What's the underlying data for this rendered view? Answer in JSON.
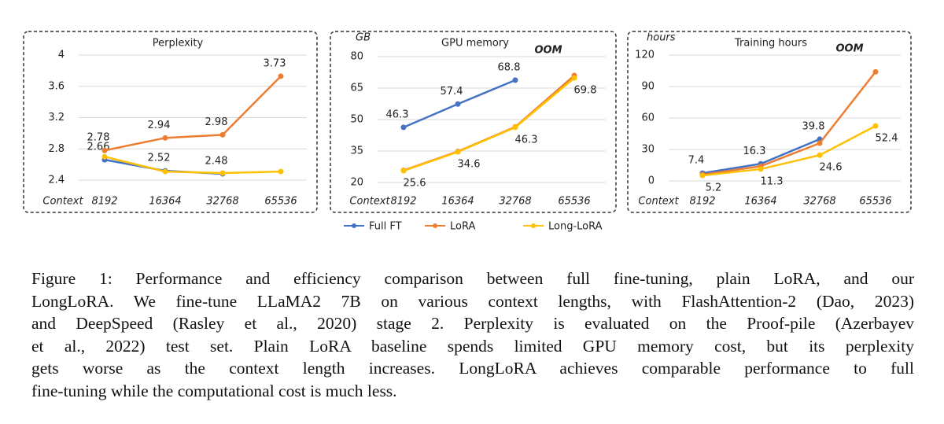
{
  "chart_data": [
    {
      "type": "line",
      "title": "Perplexity",
      "x_label": "Context",
      "categories": [
        "8192",
        "16364",
        "32768",
        "65536"
      ],
      "ylim": [
        2.4,
        4
      ],
      "yticks": [
        2.4,
        2.8,
        3.2,
        3.6,
        4
      ],
      "grid": true,
      "series": [
        {
          "name": "Full FT",
          "color": "#4472c4",
          "values": [
            2.66,
            2.52,
            2.48,
            null
          ],
          "value_labels": [
            "2.66",
            "2.52",
            "2.48",
            null
          ]
        },
        {
          "name": "LoRA",
          "color": "#ed7d31",
          "values": [
            2.78,
            2.94,
            2.98,
            3.73
          ],
          "value_labels": [
            "2.78",
            "2.94",
            "2.98",
            "3.73"
          ]
        },
        {
          "name": "Long-LoRA",
          "color": "#ffc000",
          "values": [
            2.7,
            2.51,
            2.49,
            2.51
          ]
        }
      ]
    },
    {
      "type": "line",
      "title": "GPU memory",
      "y_label": "GB",
      "x_label": "Context",
      "annotation": "OOM",
      "categories": [
        "8192",
        "16364",
        "32768",
        "65536"
      ],
      "ylim": [
        20,
        80
      ],
      "yticks": [
        20,
        35,
        50,
        65,
        80
      ],
      "grid": true,
      "series": [
        {
          "name": "Full FT",
          "color": "#4472c4",
          "values": [
            46.3,
            57.4,
            68.8,
            null
          ],
          "value_labels": [
            "46.3",
            "57.4",
            "68.8",
            null
          ]
        },
        {
          "name": "LoRA",
          "color": "#ed7d31",
          "values": [
            25.8,
            34.8,
            46.5,
            71
          ]
        },
        {
          "name": "Long-LoRA",
          "color": "#ffc000",
          "values": [
            25.6,
            34.6,
            46.3,
            69.8
          ],
          "value_labels": [
            "25.6",
            "34.6",
            "46.3",
            "69.8"
          ]
        }
      ]
    },
    {
      "type": "line",
      "title": "Training hours",
      "y_label": "hours",
      "x_label": "Context",
      "annotation": "OOM",
      "categories": [
        "8192",
        "16364",
        "32768",
        "65536"
      ],
      "ylim": [
        0,
        120
      ],
      "yticks": [
        0,
        30,
        60,
        90,
        120
      ],
      "grid": true,
      "series": [
        {
          "name": "Full FT",
          "color": "#4472c4",
          "values": [
            7.4,
            16.3,
            39.8,
            null
          ],
          "value_labels": [
            "7.4",
            "16.3",
            "39.8",
            null
          ]
        },
        {
          "name": "LoRA",
          "color": "#ed7d31",
          "values": [
            6,
            14,
            36,
            104
          ]
        },
        {
          "name": "Long-LoRA",
          "color": "#ffc000",
          "values": [
            5.2,
            11.3,
            24.6,
            52.4
          ],
          "value_labels": [
            "5.2",
            "11.3",
            "24.6",
            "52.4"
          ]
        }
      ]
    }
  ],
  "caption": [
    "Figure 1: Performance and efficiency comparison between full fine-tuning, plain LoRA, and our",
    "LongLoRA. We fine-tune LLaMA2 7B on various context lengths, with FlashAttention-2 (Dao, 2023)",
    "and DeepSpeed (Rasley et al., 2020) stage 2. Perplexity is evaluated on the Proof-pile (Azerbayev",
    "et al., 2022) test set. Plain LoRA baseline spends limited GPU memory cost, but its perplexity",
    "gets worse as the context length increases. LongLoRA achieves comparable performance to full",
    "fine-tuning while the computational cost is much less."
  ]
}
